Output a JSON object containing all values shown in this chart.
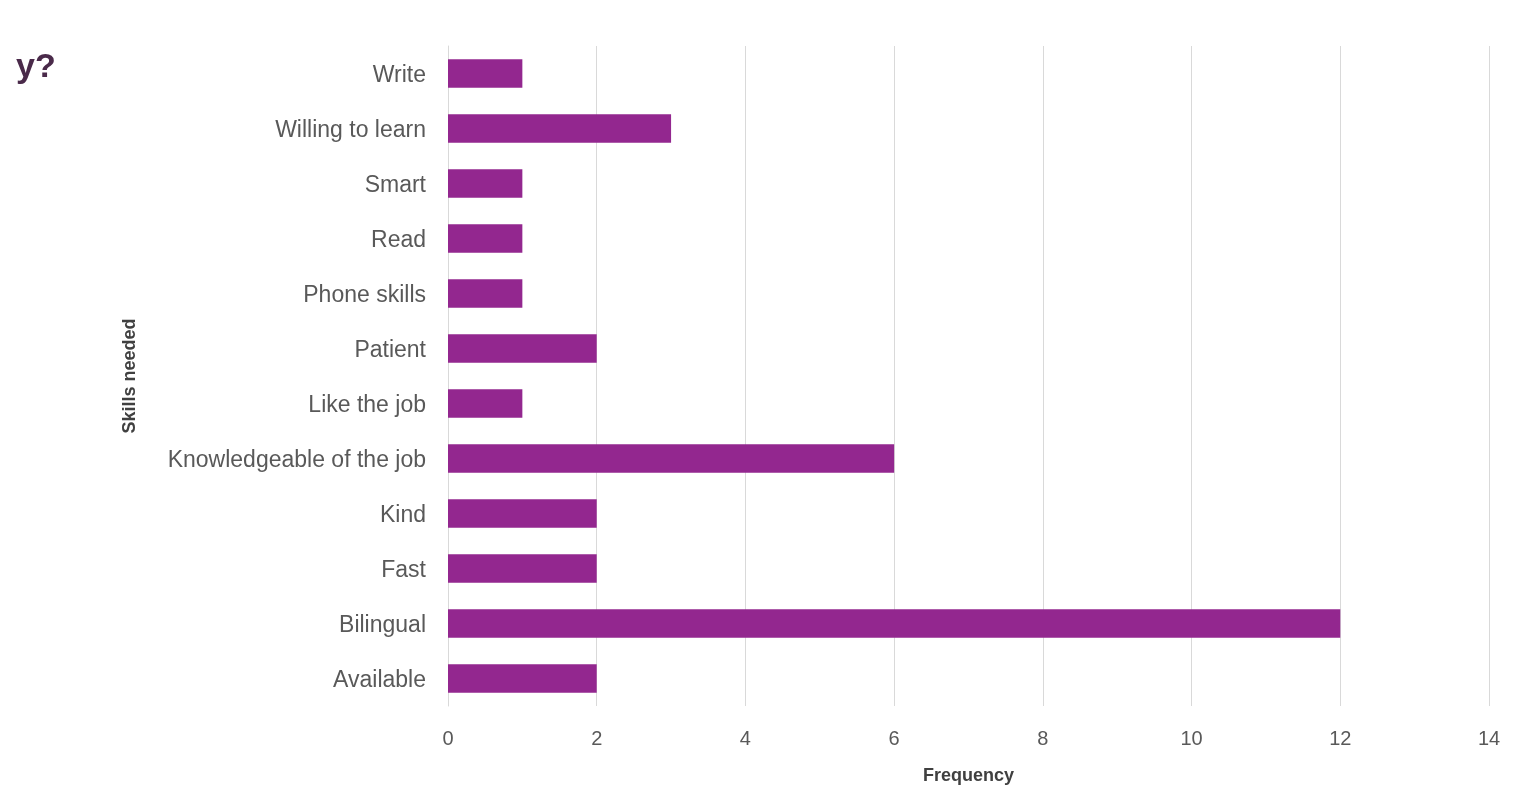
{
  "chart_data": {
    "type": "bar",
    "orientation": "horizontal",
    "xlabel": "Frequency",
    "ylabel": "Skills needed",
    "annotations": [
      "y?"
    ],
    "categories": [
      "Write",
      "Willing to learn",
      "Smart",
      "Read",
      "Phone skills",
      "Patient",
      "Like the job",
      "Knowledgeable of the job",
      "Kind",
      "Fast",
      "Bilingual",
      "Available"
    ],
    "values": [
      1,
      3,
      1,
      1,
      1,
      2,
      1,
      6,
      2,
      2,
      12,
      2
    ],
    "color": "#93278f",
    "xlim": [
      0,
      14
    ],
    "xticks": [
      0,
      2,
      4,
      6,
      8,
      10,
      12,
      14
    ],
    "grid": "x"
  }
}
